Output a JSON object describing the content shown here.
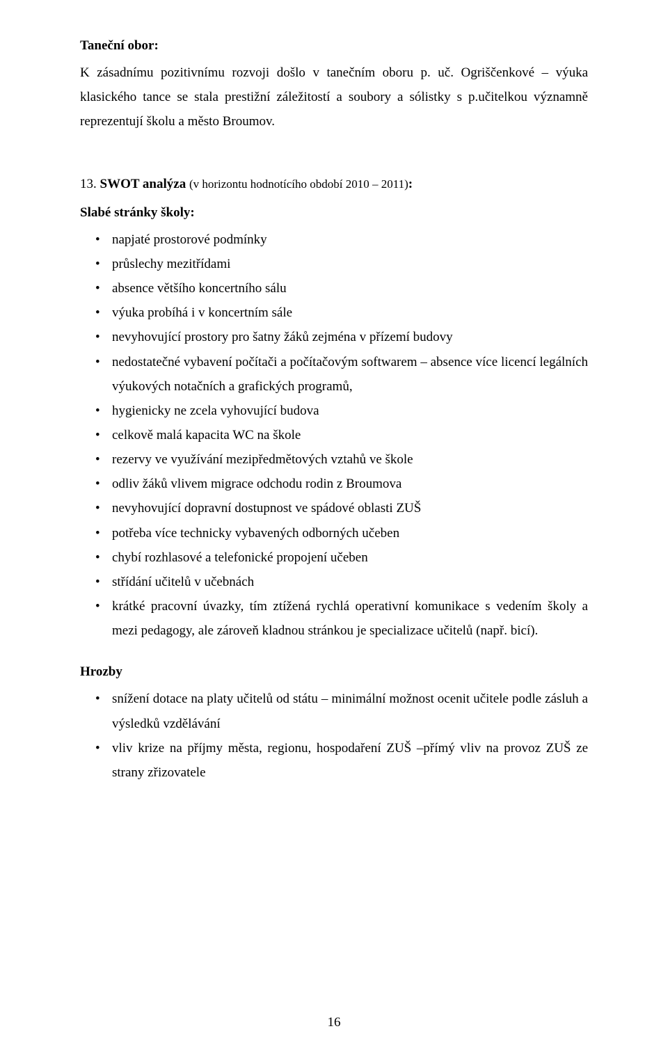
{
  "colors": {
    "text": "#000000",
    "background": "#ffffff"
  },
  "typography": {
    "body_family": "Times New Roman",
    "body_size_pt": 14,
    "line_height": 1.85
  },
  "tanecni": {
    "heading": "Taneční obor:",
    "paragraph": "K zásadnímu pozitivnímu rozvoji došlo v tanečním oboru p. uč. Ogriščenkové – výuka klasického tance se stala prestižní záležitostí a soubory a sólistky s p.učitelkou významně reprezentují školu a město Broumov."
  },
  "swot": {
    "number": "13.",
    "title_main": "SWOT analýza ",
    "title_paren": "(v horizontu hodnotícího období 2010 – 2011)",
    "title_colon": ":",
    "slabe_heading": "Slabé stránky školy:",
    "slabe_items": [
      "napjaté prostorové podmínky",
      "průslechy mezitřídami",
      "absence většího koncertního sálu",
      "výuka probíhá i v koncertním sále",
      "nevyhovující prostory pro šatny žáků zejména v přízemí budovy",
      "nedostatečné vybavení počítači a počítačovým softwarem – absence více licencí legálních výukových notačních a grafických programů,",
      "hygienicky ne zcela vyhovující budova",
      "celkově malá kapacita WC na škole",
      "rezervy ve využívání mezipředmětových vztahů ve škole",
      "odliv žáků vlivem migrace odchodu rodin z Broumova",
      "nevyhovující dopravní dostupnost ve spádové oblasti ZUŠ",
      "potřeba více technicky vybavených odborných  učeben",
      "chybí rozhlasové a telefonické propojení učeben",
      "střídání učitelů v učebnách",
      "krátké pracovní úvazky, tím ztížená rychlá operativní komunikace s vedením školy a mezi pedagogy, ale zároveň kladnou stránkou je specializace učitelů (např. bicí)."
    ]
  },
  "hrozby": {
    "heading": "Hrozby",
    "items": [
      "snížení dotace na platy učitelů od státu – minimální možnost ocenit učitele podle zásluh a výsledků vzdělávání",
      "vliv krize na příjmy města, regionu, hospodaření ZUŠ –přímý vliv na provoz ZUŠ  ze strany zřizovatele"
    ]
  },
  "page_number": "16"
}
